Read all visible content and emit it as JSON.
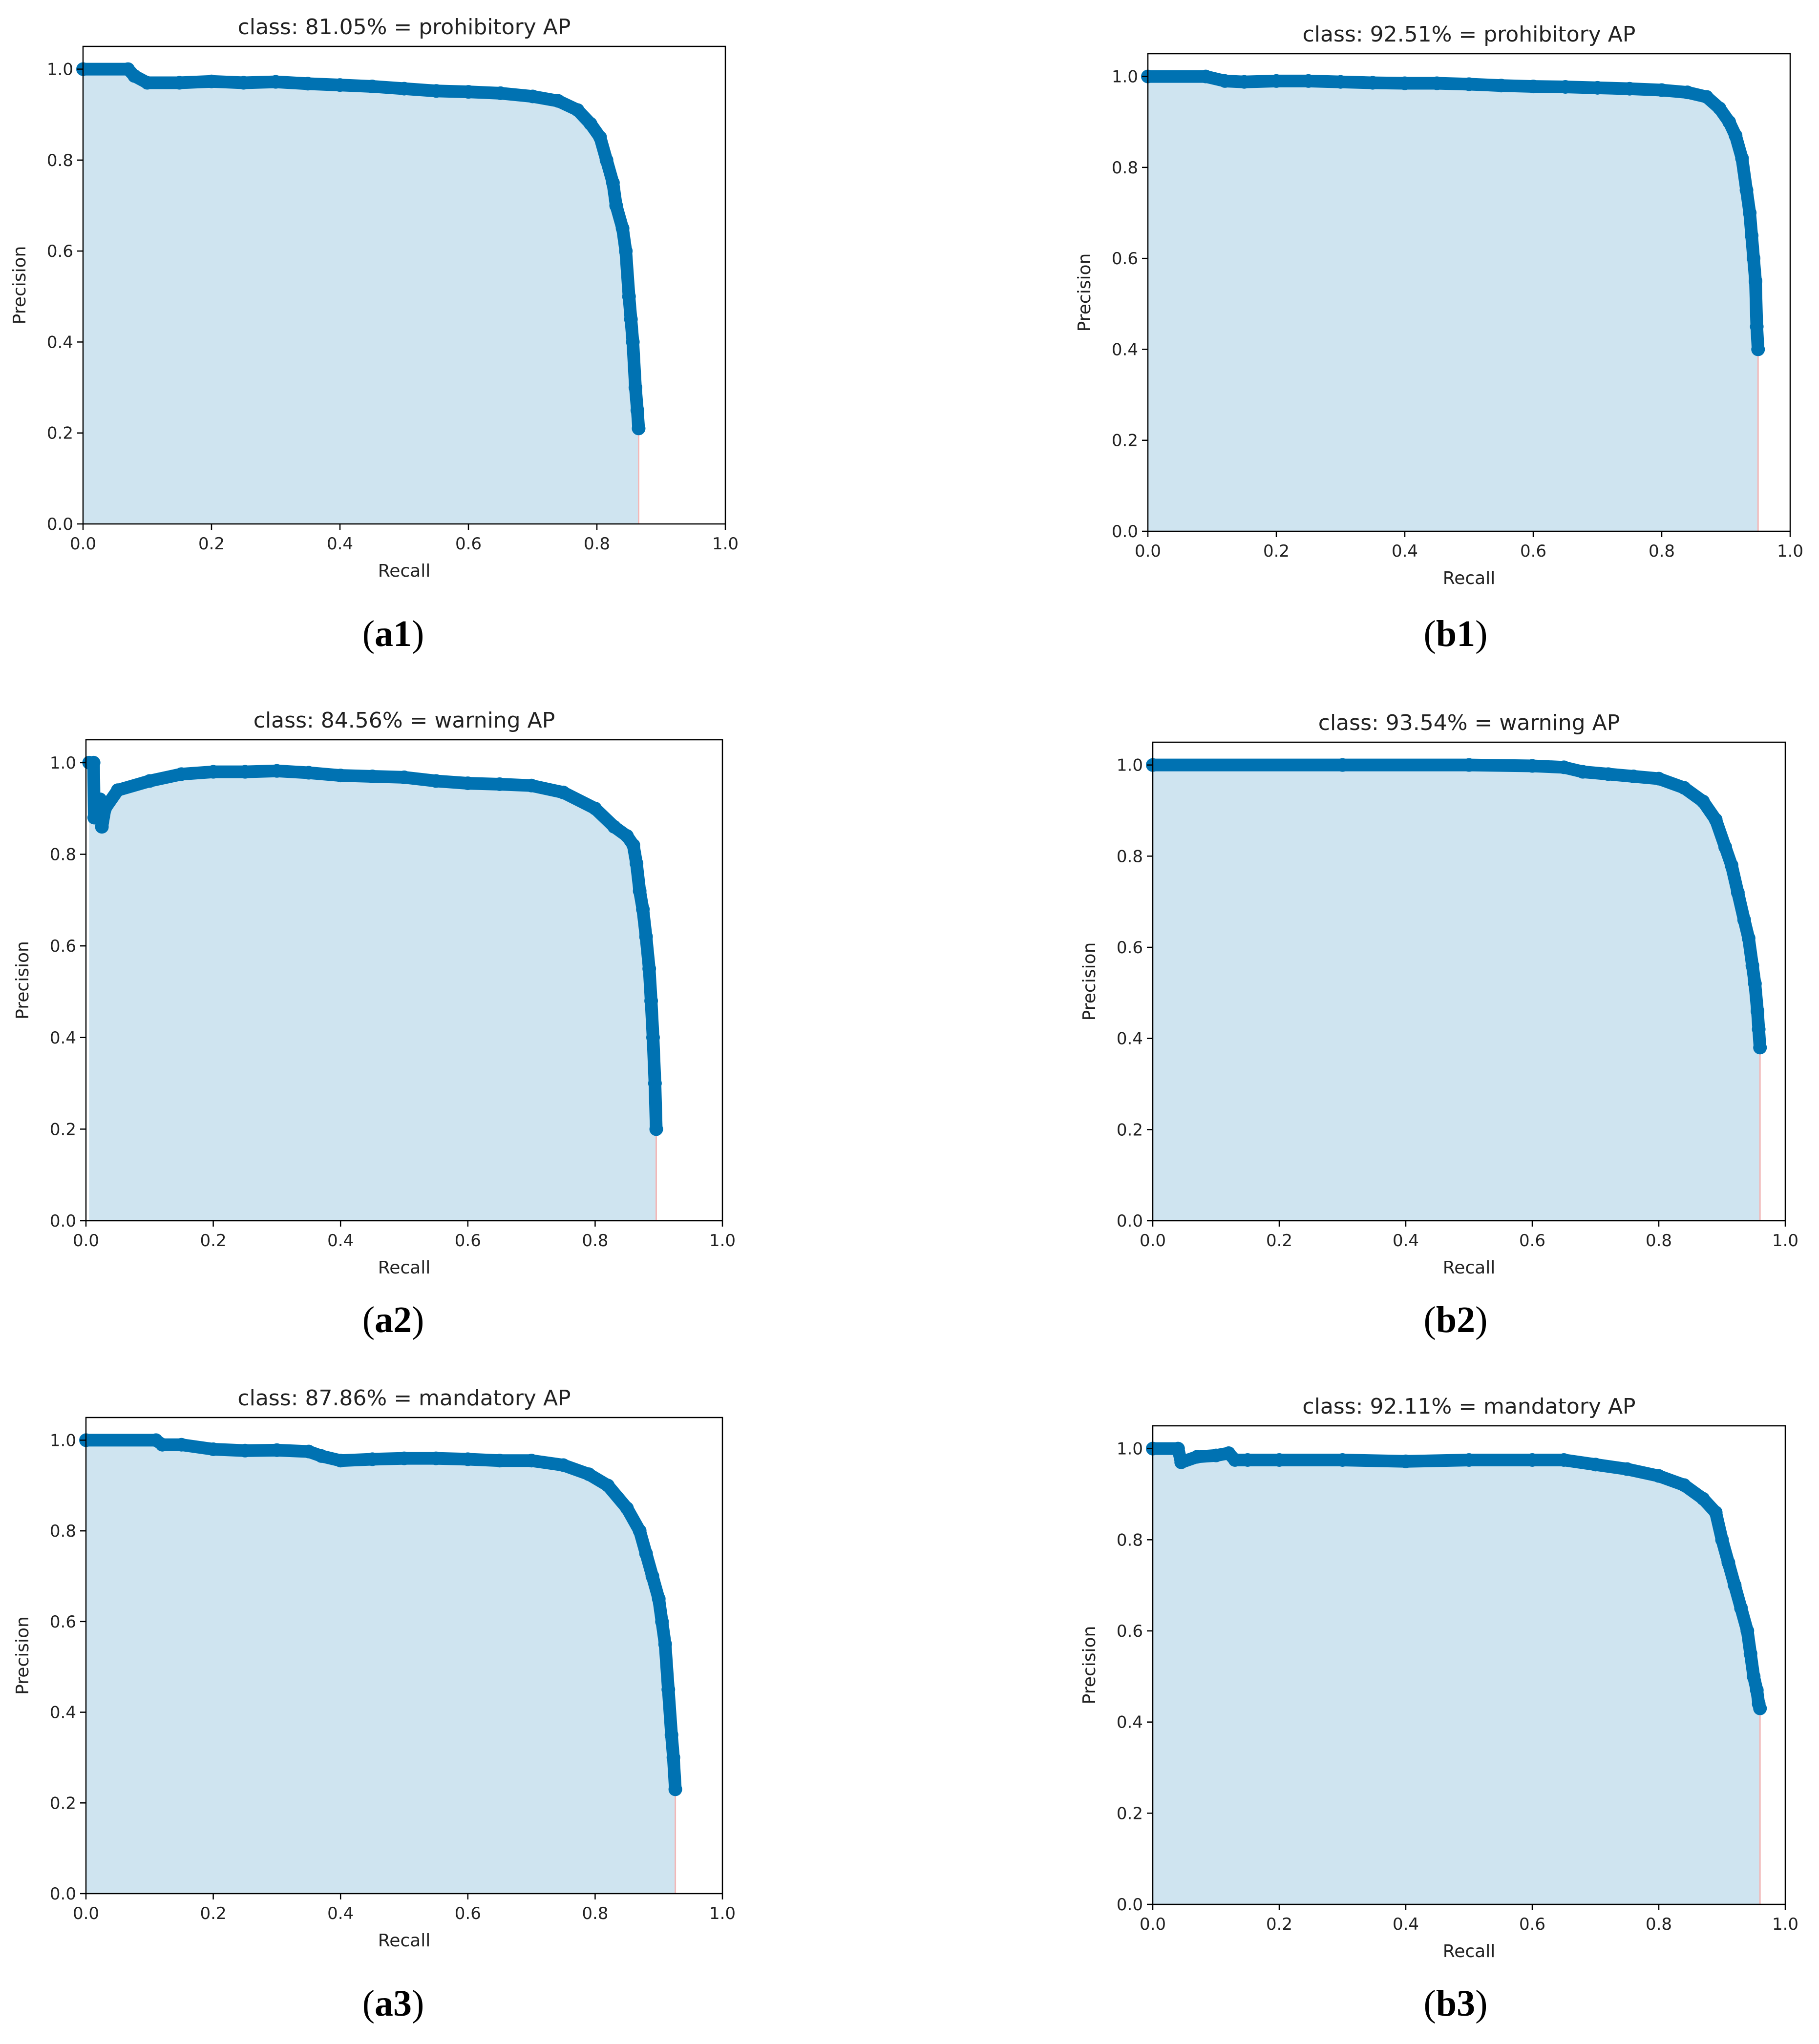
{
  "figure": {
    "captions": [
      {
        "id": "a1",
        "open": "(",
        "label": "a1",
        "close": ")"
      },
      {
        "id": "b1",
        "open": "(",
        "label": "b1",
        "close": ")"
      },
      {
        "id": "a2",
        "open": "(",
        "label": "a2",
        "close": ")"
      },
      {
        "id": "b2",
        "open": "(",
        "label": "b2",
        "close": ")"
      },
      {
        "id": "a3",
        "open": "(",
        "label": "a3",
        "close": ")"
      },
      {
        "id": "b3",
        "open": "(",
        "label": "b3",
        "close": ")"
      }
    ]
  },
  "colors": {
    "curve": "#0072B2",
    "fill": "#cfe4f0",
    "fill_edge": "#f2b8b8",
    "axis": "#000000",
    "text": "#222222"
  },
  "chart_data": [
    {
      "id": "a1",
      "type": "area",
      "title": "class: 81.05% = prohibitory AP",
      "xlabel": "Recall",
      "ylabel": "Precision",
      "xlim": [
        0,
        1
      ],
      "ylim": [
        0,
        1.05
      ],
      "xticks": [
        "0.0",
        "0.2",
        "0.4",
        "0.6",
        "0.8",
        "1.0"
      ],
      "yticks": [
        "0.0",
        "0.2",
        "0.4",
        "0.6",
        "0.8",
        "1.0"
      ],
      "grid": false,
      "series": [
        {
          "x": [
            0.0,
            0.07,
            0.08,
            0.1,
            0.15,
            0.2,
            0.25,
            0.3,
            0.35,
            0.4,
            0.45,
            0.5,
            0.55,
            0.6,
            0.65,
            0.7,
            0.74,
            0.77,
            0.79,
            0.805,
            0.815,
            0.825,
            0.83,
            0.84,
            0.845,
            0.85,
            0.853,
            0.856,
            0.86,
            0.863,
            0.865
          ],
          "y": [
            1.0,
            1.0,
            0.985,
            0.97,
            0.97,
            0.973,
            0.97,
            0.972,
            0.968,
            0.965,
            0.962,
            0.957,
            0.952,
            0.95,
            0.947,
            0.94,
            0.93,
            0.91,
            0.88,
            0.85,
            0.8,
            0.75,
            0.7,
            0.65,
            0.6,
            0.5,
            0.45,
            0.4,
            0.3,
            0.25,
            0.21
          ]
        }
      ]
    },
    {
      "id": "b1",
      "type": "area",
      "title": "class: 92.51% = prohibitory AP",
      "xlabel": "Recall",
      "ylabel": "Precision",
      "xlim": [
        0,
        1
      ],
      "ylim": [
        0,
        1.05
      ],
      "xticks": [
        "0.0",
        "0.2",
        "0.4",
        "0.6",
        "0.8",
        "1.0"
      ],
      "yticks": [
        "0.0",
        "0.2",
        "0.4",
        "0.6",
        "0.8",
        "1.0"
      ],
      "grid": false,
      "series": [
        {
          "x": [
            0.0,
            0.09,
            0.12,
            0.15,
            0.2,
            0.25,
            0.3,
            0.35,
            0.4,
            0.45,
            0.5,
            0.55,
            0.6,
            0.65,
            0.7,
            0.75,
            0.8,
            0.84,
            0.87,
            0.89,
            0.905,
            0.915,
            0.925,
            0.932,
            0.937,
            0.94,
            0.943,
            0.946,
            0.948,
            0.95
          ],
          "y": [
            1.0,
            1.0,
            0.99,
            0.988,
            0.99,
            0.99,
            0.988,
            0.986,
            0.985,
            0.985,
            0.983,
            0.98,
            0.978,
            0.977,
            0.975,
            0.973,
            0.97,
            0.965,
            0.955,
            0.93,
            0.9,
            0.87,
            0.82,
            0.75,
            0.7,
            0.65,
            0.6,
            0.55,
            0.45,
            0.4
          ]
        }
      ]
    },
    {
      "id": "a2",
      "type": "area",
      "title": "class: 84.56% = warning AP",
      "xlabel": "Recall",
      "ylabel": "Precision",
      "xlim": [
        0,
        1
      ],
      "ylim": [
        0,
        1.05
      ],
      "xticks": [
        "0.0",
        "0.2",
        "0.4",
        "0.6",
        "0.8",
        "1.0"
      ],
      "yticks": [
        "0.0",
        "0.2",
        "0.4",
        "0.6",
        "0.8",
        "1.0"
      ],
      "grid": false,
      "series": [
        {
          "x": [
            0.005,
            0.012,
            0.013,
            0.018,
            0.022,
            0.025,
            0.03,
            0.05,
            0.1,
            0.15,
            0.2,
            0.25,
            0.3,
            0.35,
            0.4,
            0.45,
            0.5,
            0.55,
            0.6,
            0.65,
            0.7,
            0.75,
            0.8,
            0.83,
            0.85,
            0.86,
            0.865,
            0.87,
            0.875,
            0.88,
            0.885,
            0.888,
            0.891,
            0.894,
            0.896
          ],
          "y": [
            1.0,
            1.0,
            0.88,
            0.9,
            0.92,
            0.86,
            0.9,
            0.94,
            0.96,
            0.975,
            0.98,
            0.98,
            0.982,
            0.978,
            0.972,
            0.97,
            0.968,
            0.96,
            0.955,
            0.953,
            0.95,
            0.935,
            0.9,
            0.86,
            0.84,
            0.82,
            0.78,
            0.72,
            0.68,
            0.62,
            0.55,
            0.48,
            0.4,
            0.3,
            0.2
          ]
        }
      ]
    },
    {
      "id": "b2",
      "type": "area",
      "title": "class: 93.54% = warning AP",
      "xlabel": "Recall",
      "ylabel": "Precision",
      "xlim": [
        0,
        1
      ],
      "ylim": [
        0,
        1.05
      ],
      "xticks": [
        "0.0",
        "0.2",
        "0.4",
        "0.6",
        "0.8",
        "1.0"
      ],
      "yticks": [
        "0.0",
        "0.2",
        "0.4",
        "0.6",
        "0.8",
        "1.0"
      ],
      "grid": false,
      "series": [
        {
          "x": [
            0.0,
            0.3,
            0.5,
            0.6,
            0.65,
            0.68,
            0.72,
            0.76,
            0.8,
            0.84,
            0.87,
            0.89,
            0.905,
            0.915,
            0.925,
            0.935,
            0.942,
            0.948,
            0.952,
            0.956,
            0.958,
            0.96
          ],
          "y": [
            1.0,
            1.0,
            1.0,
            0.998,
            0.995,
            0.985,
            0.98,
            0.975,
            0.97,
            0.95,
            0.92,
            0.88,
            0.82,
            0.78,
            0.72,
            0.66,
            0.62,
            0.56,
            0.52,
            0.46,
            0.42,
            0.38
          ]
        }
      ]
    },
    {
      "id": "a3",
      "type": "area",
      "title": "class: 87.86% = mandatory AP",
      "xlabel": "Recall",
      "ylabel": "Precision",
      "xlim": [
        0,
        1
      ],
      "ylim": [
        0,
        1.05
      ],
      "xticks": [
        "0.0",
        "0.2",
        "0.4",
        "0.6",
        "0.8",
        "1.0"
      ],
      "yticks": [
        "0.0",
        "0.2",
        "0.4",
        "0.6",
        "0.8",
        "1.0"
      ],
      "grid": false,
      "series": [
        {
          "x": [
            0.0,
            0.11,
            0.12,
            0.15,
            0.2,
            0.25,
            0.3,
            0.35,
            0.37,
            0.4,
            0.45,
            0.5,
            0.55,
            0.6,
            0.65,
            0.7,
            0.75,
            0.79,
            0.82,
            0.85,
            0.87,
            0.88,
            0.89,
            0.9,
            0.905,
            0.91,
            0.915,
            0.92,
            0.923,
            0.926
          ],
          "y": [
            1.0,
            1.0,
            0.99,
            0.99,
            0.98,
            0.977,
            0.978,
            0.975,
            0.965,
            0.955,
            0.958,
            0.96,
            0.96,
            0.958,
            0.955,
            0.955,
            0.945,
            0.925,
            0.9,
            0.85,
            0.8,
            0.75,
            0.7,
            0.65,
            0.6,
            0.55,
            0.45,
            0.35,
            0.3,
            0.23
          ]
        }
      ]
    },
    {
      "id": "b3",
      "type": "area",
      "title": "class: 92.11% = mandatory AP",
      "xlabel": "Recall",
      "ylabel": "Precision",
      "xlim": [
        0,
        1
      ],
      "ylim": [
        0,
        1.05
      ],
      "xticks": [
        "0.0",
        "0.2",
        "0.4",
        "0.6",
        "0.8",
        "1.0"
      ],
      "yticks": [
        "0.0",
        "0.2",
        "0.4",
        "0.6",
        "0.8",
        "1.0"
      ],
      "grid": false,
      "series": [
        {
          "x": [
            0.0,
            0.04,
            0.045,
            0.07,
            0.1,
            0.12,
            0.13,
            0.15,
            0.2,
            0.3,
            0.4,
            0.5,
            0.6,
            0.65,
            0.7,
            0.75,
            0.8,
            0.84,
            0.87,
            0.89,
            0.9,
            0.91,
            0.92,
            0.93,
            0.94,
            0.945,
            0.95,
            0.955,
            0.958,
            0.96
          ],
          "y": [
            1.0,
            1.0,
            0.97,
            0.982,
            0.985,
            0.99,
            0.975,
            0.975,
            0.975,
            0.975,
            0.972,
            0.975,
            0.975,
            0.975,
            0.965,
            0.955,
            0.94,
            0.92,
            0.89,
            0.86,
            0.8,
            0.75,
            0.7,
            0.65,
            0.6,
            0.55,
            0.5,
            0.47,
            0.44,
            0.43
          ]
        }
      ]
    }
  ]
}
